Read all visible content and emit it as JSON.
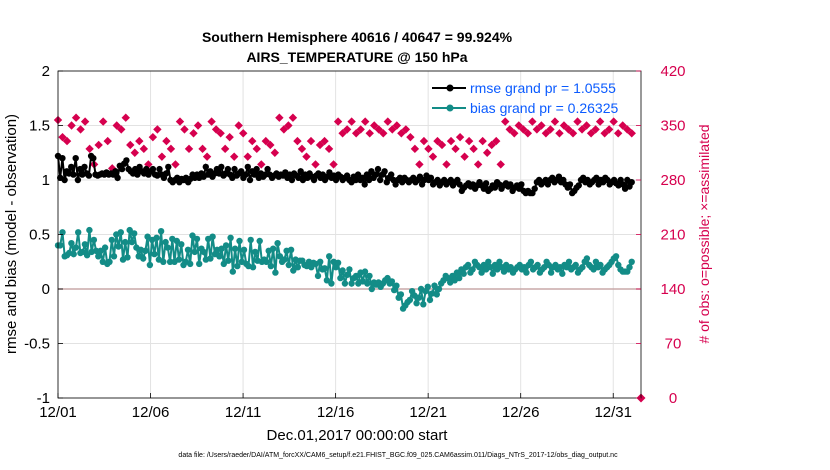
{
  "chart_data": {
    "type": "line",
    "title_line1": "Southern Hemisphere 40616 / 40647 = 99.924%",
    "title_line2": "AIRS_TEMPERATURE @ 150 hPa",
    "xlabel": "Dec.01,2017 00:00:00 start",
    "ylabel": "rmse and bias (model - observation)",
    "ylabel_right": "# of obs: o=possible; ×=assimilated",
    "xlim": [
      0,
      31.5
    ],
    "ylim": [
      -1,
      2
    ],
    "ylim_right": [
      0,
      420
    ],
    "x_tick_labels": [
      "12/01",
      "12/06",
      "12/11",
      "12/16",
      "12/21",
      "12/26",
      "12/31"
    ],
    "y_tick_labels": [
      "-1",
      "-0.5",
      "0",
      "0.5",
      "1",
      "1.5",
      "2"
    ],
    "y_right_tick_labels": [
      "0",
      "70",
      "140",
      "210",
      "280",
      "350",
      "420"
    ],
    "legend": [
      "rmse grand pr = 1.0555",
      "bias grand pr = 0.26325"
    ],
    "footer": "data file: /Users/raeder/DAI/ATM_forcXX/CAM6_setup/f.e21.FHIST_BGC.f09_025.CAM6assim.011/Diags_NTrS_2017-12/obs_diag_output.nc",
    "colors": {
      "rmse": "#000000",
      "bias": "#138c87",
      "obs": "#d6004e",
      "grid": "#e2e2e2",
      "zero_line": "#c8a8a8"
    },
    "series": [
      {
        "name": "rmse",
        "values": [
          1.22,
          1.02,
          1.2,
          1.0,
          1.08,
          1.06,
          1.12,
          1.05,
          1.2,
          1.0,
          1.1,
          1.05,
          1.12,
          1.06,
          1.04,
          1.22,
          1.2,
          1.05,
          1.04,
          1.05,
          1.06,
          1.05,
          1.07,
          1.05,
          1.06,
          1.05,
          1.08,
          1.02,
          1.13,
          1.1,
          1.15,
          1.18,
          1.1,
          1.08,
          1.06,
          1.1,
          1.05,
          1.12,
          1.08,
          1.06,
          1.1,
          1.05,
          1.08,
          1.1,
          1.05,
          1.04,
          1.1,
          1.05,
          1.02,
          1.06,
          1.12,
          1.0,
          0.98,
          1.0,
          1.02,
          0.98,
          1.01,
          1.0,
          1.02,
          0.98,
          1.01,
          1.05,
          1.02,
          1.05,
          1.02,
          1.06,
          1.03,
          1.12,
          1.05,
          1.08,
          1.03,
          1.06,
          1.1,
          1.06,
          1.12,
          1.04,
          1.06,
          1.1,
          1.05,
          1.02,
          1.1,
          1.04,
          1.06,
          1.08,
          1.02,
          1.05,
          1.12,
          1.0,
          1.08,
          1.05,
          1.1,
          1.02,
          1.06,
          1.03,
          1.05,
          1.1,
          1.05,
          1.02,
          1.04,
          1.06,
          1.03,
          1.05,
          1.04,
          1.07,
          1.02,
          1.05,
          1.0,
          1.06,
          1.04,
          1.02,
          1.08,
          1.0,
          1.05,
          1.02,
          1.06,
          1.03,
          1.0,
          1.04,
          1.06,
          1.02,
          1.05,
          1.0,
          1.03,
          1.07,
          1.02,
          1.04,
          1.0,
          1.05,
          1.03,
          1.0,
          1.02,
          1.04,
          1.0,
          0.98,
          1.03,
          1.0,
          1.05,
          1.0,
          1.02,
          0.96,
          1.05,
          1.0,
          1.08,
          1.02,
          1.05,
          1.1,
          1.0,
          1.05,
          1.08,
          0.98,
          1.02,
          1.05,
          1.0,
          0.96,
          1.0,
          1.02,
          0.98,
          1.02,
          1.0,
          0.98,
          1.0,
          1.02,
          0.98,
          1.0,
          1.03,
          0.96,
          1.0,
          1.04,
          1.0,
          1.02,
          0.96,
          0.98,
          1.0,
          0.95,
          0.98,
          1.0,
          0.96,
          0.98,
          1.0,
          0.95,
          0.98,
          1.0,
          0.96,
          0.9,
          0.93,
          0.95,
          0.97,
          0.94,
          0.96,
          0.92,
          0.95,
          0.98,
          0.95,
          0.92,
          0.97,
          0.9,
          0.92,
          0.95,
          0.93,
          0.98,
          0.96,
          0.92,
          0.95,
          0.97,
          0.94,
          0.96,
          0.9,
          0.93,
          0.95,
          0.92,
          0.96,
          0.9,
          0.88,
          0.9,
          0.88,
          0.88,
          0.92,
          0.98,
          1.0,
          0.96,
          0.98,
          1.0,
          0.96,
          1.0,
          1.02,
          0.98,
          1.0,
          1.03,
          0.98,
          1.0,
          0.96,
          0.93,
          0.96,
          0.88,
          0.9,
          0.93,
          0.95,
          1.0,
          1.02,
          0.98,
          1.0,
          0.96,
          0.98,
          1.0,
          1.02,
          0.96,
          1.0,
          0.98,
          1.02,
          1.0,
          0.96,
          0.98,
          1.0,
          0.97,
          0.95,
          1.0,
          0.96,
          0.92,
          1.0,
          0.94,
          0.98
        ]
      },
      {
        "name": "bias",
        "values": [
          0.4,
          0.4,
          0.52,
          0.3,
          0.31,
          0.33,
          0.42,
          0.32,
          0.38,
          0.52,
          0.33,
          0.34,
          0.41,
          0.31,
          0.54,
          0.34,
          0.45,
          0.35,
          0.3,
          0.35,
          0.25,
          0.38,
          0.23,
          0.25,
          0.45,
          0.3,
          0.5,
          0.39,
          0.52,
          0.27,
          0.43,
          0.29,
          0.54,
          0.43,
          0.51,
          0.38,
          0.3,
          0.36,
          0.28,
          0.35,
          0.48,
          0.22,
          0.45,
          0.32,
          0.47,
          0.27,
          0.53,
          0.25,
          0.43,
          0.38,
          0.25,
          0.46,
          0.25,
          0.44,
          0.27,
          0.41,
          0.22,
          0.25,
          0.36,
          0.23,
          0.49,
          0.34,
          0.46,
          0.23,
          0.37,
          0.34,
          0.27,
          0.46,
          0.28,
          0.48,
          0.32,
          0.36,
          0.3,
          0.37,
          0.23,
          0.4,
          0.26,
          0.47,
          0.16,
          0.37,
          0.21,
          0.44,
          0.25,
          0.36,
          0.23,
          0.21,
          0.45,
          0.2,
          0.34,
          0.26,
          0.44,
          0.25,
          0.27,
          0.25,
          0.35,
          0.21,
          0.37,
          0.15,
          0.42,
          0.3,
          0.25,
          0.27,
          0.35,
          0.22,
          0.36,
          0.17,
          0.27,
          0.2,
          0.26,
          0.26,
          0.22,
          0.21,
          0.25,
          0.2,
          0.24,
          0.23,
          0.12,
          0.25,
          0.18,
          0.19,
          0.08,
          0.3,
          0.05,
          0.25,
          0.2,
          0.24,
          0.1,
          0.17,
          0.05,
          0.13,
          0.18,
          0.05,
          0.1,
          0.12,
          0.05,
          0.15,
          0.07,
          0.16,
          0.05,
          0.12,
          0.0,
          0.06,
          0.04,
          0.06,
          0.02,
          0.05,
          0.08,
          0.1,
          0.05,
          0.07,
          -0.01,
          0.03,
          -0.08,
          -0.05,
          -0.18,
          -0.15,
          -0.12,
          -0.1,
          -0.02,
          -0.06,
          -0.13,
          -0.08,
          0.0,
          -0.14,
          -0.02,
          0.02,
          -0.1,
          -0.04,
          0.03,
          -0.05,
          0.0,
          0.05,
          0.08,
          0.12,
          0.1,
          0.06,
          0.12,
          0.08,
          0.15,
          0.1,
          0.18,
          0.14,
          0.2,
          0.22,
          0.15,
          0.18,
          0.25,
          0.22,
          0.2,
          0.15,
          0.22,
          0.18,
          0.25,
          0.2,
          0.14,
          0.22,
          0.18,
          0.25,
          0.2,
          0.16,
          0.22,
          0.18,
          0.2,
          0.15,
          0.18,
          0.2,
          0.22,
          0.18,
          0.2,
          0.15,
          0.22,
          0.25,
          0.18,
          0.2,
          0.22,
          0.15,
          0.18,
          0.2,
          0.25,
          0.22,
          0.15,
          0.2,
          0.22,
          0.18,
          0.2,
          0.14,
          0.22,
          0.2,
          0.25,
          0.18,
          0.2,
          0.22,
          0.15,
          0.18,
          0.2,
          0.25,
          0.28,
          0.22,
          0.2,
          0.18,
          0.25,
          0.2,
          0.22,
          0.15,
          0.18,
          0.2,
          0.22,
          0.25,
          0.28,
          0.3,
          0.22,
          0.18,
          0.16,
          0.16,
          0.16,
          0.2,
          0.25
        ]
      },
      {
        "name": "obs_possible",
        "values": [
          357,
          365,
          335,
          320,
          330,
          315,
          350,
          340,
          360,
          325,
          345,
          330,
          355,
          370,
          320,
          340,
          300,
          345,
          325,
          350,
          355,
          365,
          330,
          340,
          295,
          335,
          350,
          320,
          345,
          330,
          360,
          340,
          325,
          355,
          315,
          345,
          330,
          350,
          320,
          340,
          300,
          355,
          335,
          325,
          345,
          360,
          310,
          340,
          330,
          350,
          320,
          345,
          300,
          335,
          355,
          325,
          345,
          360,
          320,
          330,
          340,
          295,
          350,
          330,
          320,
          345,
          310,
          335,
          355,
          325,
          345,
          300,
          340,
          330,
          320,
          355,
          335,
          345,
          310,
          330,
          350,
          320,
          340,
          360,
          310,
          345,
          330,
          355,
          320,
          340,
          300,
          345,
          330,
          355,
          325,
          345,
          315,
          340,
          360,
          330,
          345,
          320,
          350,
          335,
          360,
          345,
          330,
          355,
          320,
          340,
          310,
          350,
          330,
          345,
          300,
          340,
          325,
          355,
          330,
          345,
          320,
          350,
          300,
          335,
          355,
          325,
          340,
          315,
          345,
          330,
          355,
          320,
          340,
          300,
          345,
          330,
          355,
          320,
          340,
          305,
          350,
          330,
          345,
          315,
          340,
          300,
          355,
          330,
          345,
          320,
          350,
          335,
          340,
          325,
          345,
          310,
          335,
          355,
          320,
          340,
          300,
          345,
          330,
          355,
          320,
          340,
          310,
          350,
          330,
          345,
          325,
          340,
          300,
          355,
          330,
          345,
          320,
          350,
          335,
          340,
          310,
          345,
          330,
          355,
          320,
          340,
          300,
          345,
          330,
          355,
          315,
          340,
          325,
          350,
          330,
          345,
          300,
          335,
          355,
          320,
          345,
          330,
          340,
          310,
          350,
          330,
          345,
          320,
          340,
          305,
          355,
          330,
          345,
          320,
          350,
          335,
          340,
          300,
          345,
          330,
          355,
          320,
          340,
          310,
          350,
          330,
          345,
          320,
          340,
          300,
          355,
          330,
          345,
          320,
          350,
          335,
          340,
          310,
          345,
          330,
          355,
          320,
          340,
          300,
          345,
          330,
          355,
          320,
          340,
          310,
          350,
          330,
          345,
          320,
          340
        ]
      }
    ]
  }
}
